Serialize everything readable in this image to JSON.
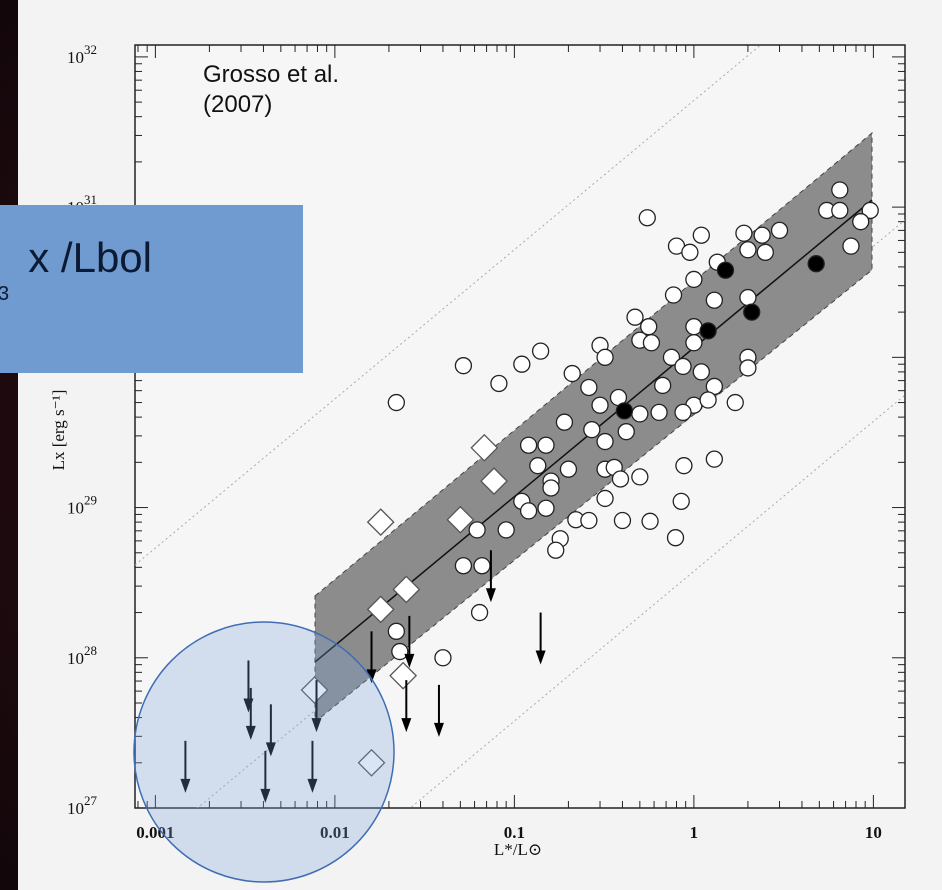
{
  "chart_data": {
    "type": "scatter",
    "annotation": [
      "Grosso et al.",
      "(2007)"
    ],
    "xlabel": "L*/L⊙",
    "ylabel": "Lx [erg s⁻¹]",
    "overlay_title": "x /Lbol",
    "overlay_subtitle": "3",
    "log_x": true,
    "log_y": true,
    "xlim": [
      0.00077,
      15
    ],
    "ylim": [
      1e+27,
      1.2e+32
    ],
    "xticks": [
      0.001,
      0.01,
      0.1,
      1,
      10
    ],
    "yticks": [
      {
        "value": 1e+27,
        "label": "10",
        "exponent": "27"
      },
      {
        "value": 1e+28,
        "label": "10",
        "exponent": "28"
      },
      {
        "value": 1e+29,
        "label": "10",
        "exponent": "29"
      },
      {
        "value": 1e+30,
        "label": "10",
        "exponent": "30"
      },
      {
        "value": 1e+31,
        "label": "10",
        "exponent": "31"
      },
      {
        "value": 1e+32,
        "label": "10",
        "exponent": "32"
      }
    ],
    "series": [
      {
        "marker": "circle-open",
        "color": "#ffffff",
        "x": [
          0.55,
          9.6,
          5.5,
          6.5,
          6.5,
          7.5,
          8.5,
          0.8,
          0.95,
          1.1,
          1.9,
          2.4,
          3,
          2,
          2.5,
          1.35,
          1,
          0.77,
          1.3,
          2,
          0.47,
          0.56,
          1,
          1,
          0.5,
          0.58,
          0.3,
          0.32,
          2,
          2,
          0.75,
          0.87,
          0.67,
          1.1,
          1.3,
          1.7,
          1,
          0.87,
          1.2,
          0.11,
          0.14,
          0.21,
          0.052,
          0.082,
          0.022,
          0.26,
          0.38,
          0.3,
          0.5,
          0.64,
          0.19,
          0.27,
          0.12,
          0.15,
          0.32,
          0.42,
          0.135,
          0.2,
          0.16,
          0.16,
          0.32,
          0.36,
          0.39,
          0.5,
          0.88,
          1.3,
          0.32,
          0.85,
          0.11,
          0.12,
          0.15,
          0.22,
          0.26,
          0.09,
          0.062,
          0.18,
          0.4,
          0.57,
          0.79,
          0.17,
          0.052,
          0.066,
          0.064,
          0.022,
          0.023,
          0.04
        ],
        "values": [
          8.5e+30,
          9.5e+30,
          9.5e+30,
          9.5e+30,
          1.3e+31,
          5.5e+30,
          8e+30,
          5.5e+30,
          5e+30,
          6.5e+30,
          6.7e+30,
          6.5e+30,
          7e+30,
          5.2e+30,
          5e+30,
          4.3e+30,
          3.3e+30,
          2.6e+30,
          2.4e+30,
          2.5e+30,
          1.85e+30,
          1.6e+30,
          1.6e+30,
          1.25e+30,
          1.3e+30,
          1.25e+30,
          1.2e+30,
          1e+30,
          1e+30,
          8.5e+29,
          1e+30,
          8.7e+29,
          6.5e+29,
          8e+29,
          6.4e+29,
          5e+29,
          4.8e+29,
          4.3e+29,
          5.2e+29,
          9e+29,
          1.1e+30,
          7.8e+29,
          8.8e+29,
          6.7e+29,
          5e+29,
          6.3e+29,
          5.4e+29,
          4.8e+29,
          4.2e+29,
          4.3e+29,
          3.7e+29,
          3.3e+29,
          2.6e+29,
          2.6e+29,
          2.75e+29,
          3.2e+29,
          1.9e+29,
          1.8e+29,
          1.5e+29,
          1.35e+29,
          1.8e+29,
          1.85e+29,
          1.55e+29,
          1.6e+29,
          1.9e+29,
          2.1e+29,
          1.15e+29,
          1.1e+29,
          1.1e+29,
          9.5e+28,
          9.9e+28,
          8.3e+28,
          8.2e+28,
          7.1e+28,
          7.1e+28,
          6.2e+28,
          8.2e+28,
          8.1e+28,
          6.3e+28,
          5.2e+28,
          4.1e+28,
          4.1e+28,
          2e+28,
          1.5e+28,
          1.1e+28,
          1e+28
        ]
      },
      {
        "marker": "circle-filled",
        "color": "#000000",
        "x": [
          1.5,
          1.2,
          2.1,
          4.8,
          0.41
        ],
        "values": [
          3.8e+30,
          1.5e+30,
          2e+30,
          4.2e+30,
          4.4e+29
        ]
      },
      {
        "marker": "diamond-open",
        "color": "#ffffff",
        "x": [
          0.068,
          0.077,
          0.05,
          0.018,
          0.025,
          0.018,
          0.024,
          0.0077,
          0.016
        ],
        "values": [
          2.5e+29,
          1.5e+29,
          8.3e+28,
          8e+28,
          2.85e+28,
          2.1e+28,
          7.6e+27,
          6.1e+27,
          2e+27
        ]
      },
      {
        "marker": "arrow-down",
        "color": "#000000",
        "x": [
          0.0033,
          0.0034,
          0.0044,
          0.0079,
          0.00147,
          0.0041,
          0.0075,
          0.016,
          0.026,
          0.025,
          0.038,
          0.074,
          0.14
        ],
        "values": [
          9.6e+27,
          6.3e+27,
          4.9e+27,
          7.1e+27,
          2.8e+27,
          2.4e+27,
          2.8e+27,
          1.5e+28,
          1.9e+28,
          7.1e+27,
          6.6e+27,
          5.2e+28,
          2e+28
        ]
      }
    ]
  }
}
